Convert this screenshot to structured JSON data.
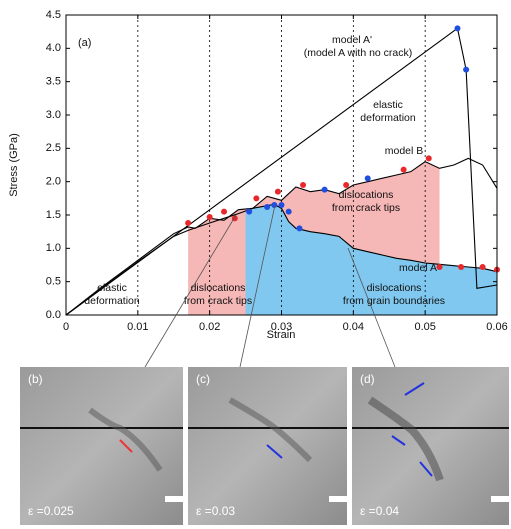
{
  "chart_data": {
    "type": "line",
    "x_label": "Strain",
    "y_label": "Stress (GPa)",
    "xlim": [
      0,
      0.06
    ],
    "ylim": [
      0,
      4.5
    ],
    "xticks": [
      0,
      0.01,
      0.02,
      0.03,
      0.04,
      0.05,
      0.06
    ],
    "yticks": [
      {
        "value": 0,
        "label": "0.0"
      },
      0.5,
      {
        "value": 1,
        "label": "1.0"
      },
      1.5,
      {
        "value": 2,
        "label": "2.0"
      },
      2.5,
      {
        "value": 3,
        "label": "3.0"
      },
      3.5,
      {
        "value": 4,
        "label": "4.0"
      },
      4.5
    ],
    "grid": "x",
    "series": [
      {
        "color": "#000000",
        "x": [
          0,
          0.0545,
          0.0557,
          0.0572,
          0.06
        ],
        "values": [
          0,
          4.3,
          3.68,
          0.4,
          0.45
        ]
      },
      {
        "color": "#000000",
        "x": [
          0,
          0.005,
          0.01,
          0.015,
          0.017,
          0.018,
          0.02,
          0.022,
          0.024,
          0.026,
          0.028,
          0.03,
          0.032,
          0.034,
          0.036,
          0.038,
          0.04,
          0.042,
          0.044,
          0.046,
          0.048,
          0.05,
          0.052,
          0.054,
          0.056,
          0.058,
          0.06
        ],
        "values": [
          0,
          0.42,
          0.82,
          1.22,
          1.32,
          1.3,
          1.45,
          1.42,
          1.58,
          1.6,
          1.78,
          1.72,
          1.92,
          1.85,
          1.88,
          1.82,
          1.95,
          2.0,
          2.05,
          2.1,
          2.15,
          2.3,
          2.2,
          2.25,
          2.35,
          2.25,
          1.9
        ]
      },
      {
        "color": "#000000",
        "x": [
          0,
          0.005,
          0.01,
          0.015,
          0.017,
          0.02,
          0.022,
          0.024,
          0.025,
          0.026,
          0.028,
          0.029,
          0.03,
          0.031,
          0.032,
          0.034,
          0.036,
          0.038,
          0.04,
          0.042,
          0.044,
          0.046,
          0.048,
          0.05,
          0.052,
          0.054,
          0.056,
          0.058,
          0.06
        ],
        "values": [
          0,
          0.4,
          0.8,
          1.18,
          1.27,
          1.38,
          1.45,
          1.52,
          1.56,
          1.6,
          1.64,
          1.66,
          1.6,
          1.4,
          1.3,
          1.25,
          1.22,
          1.18,
          1.0,
          0.95,
          0.9,
          0.85,
          0.82,
          0.78,
          0.76,
          0.74,
          0.72,
          0.7,
          0.65
        ]
      }
    ],
    "regions": [
      {
        "from": 0.017,
        "to": 0.052,
        "series": 1,
        "color": "#f6b7b7"
      },
      {
        "from": 0.025,
        "to": 0.06,
        "series": 2,
        "color": "#80c8ef"
      }
    ],
    "dots": [
      {
        "color": "#e8282b",
        "x": [
          0.017,
          0.02,
          0.022,
          0.0235,
          0.0265,
          0.0295,
          0.033,
          0.039,
          0.047,
          0.0505,
          0.052,
          0.055,
          0.058,
          0.06
        ],
        "values": [
          1.38,
          1.47,
          1.55,
          1.45,
          1.75,
          1.85,
          1.95,
          1.95,
          2.18,
          2.35,
          0.72,
          0.72,
          0.72,
          0.68
        ]
      },
      {
        "color": "#1f4fe0",
        "x": [
          0.0255,
          0.028,
          0.029,
          0.03,
          0.031,
          0.0325,
          0.036,
          0.042,
          0.0545,
          0.0557
        ],
        "values": [
          1.55,
          1.62,
          1.65,
          1.65,
          1.55,
          1.3,
          1.88,
          2.05,
          4.3,
          3.68
        ]
      }
    ],
    "annotations": [
      [
        "(a)"
      ],
      [
        "model A'"
      ],
      [
        "(model A with no crack)"
      ],
      [
        "elastic",
        "deformation"
      ],
      [
        "model B"
      ],
      [
        "dislocations",
        "from crack tips"
      ],
      [
        "model A"
      ],
      [
        "dislocations",
        "from grain boundaries"
      ],
      [
        "elastic",
        "deformation"
      ],
      [
        "dislocations",
        "from crack tips"
      ]
    ]
  },
  "panels": [
    {
      "label": "(b)",
      "strain": "ε =0.025"
    },
    {
      "label": "(c)",
      "strain": "ε =0.03"
    },
    {
      "label": "(d)",
      "strain": "ε =0.04"
    }
  ]
}
